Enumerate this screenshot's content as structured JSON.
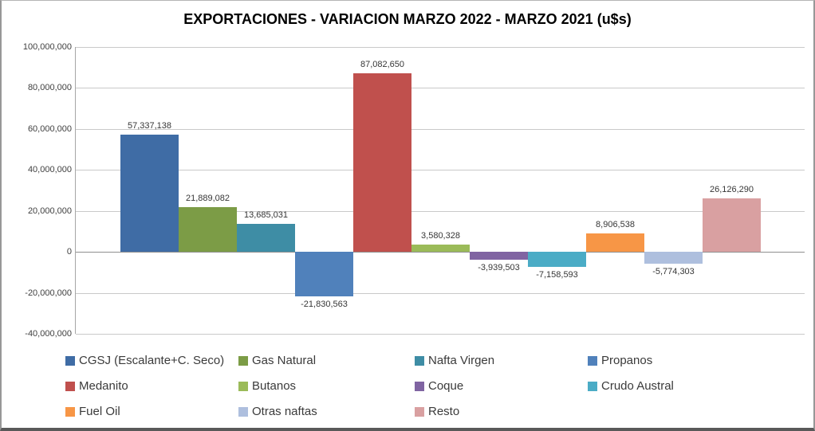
{
  "title": "EXPORTACIONES - VARIACION MARZO 2022 - MARZO 2021 (u$s)",
  "chart_data": {
    "type": "bar",
    "title": "EXPORTACIONES - VARIACION MARZO 2022 - MARZO 2021 (u$s)",
    "xlabel": "",
    "ylabel": "",
    "ylim": [
      -40000000,
      100000000
    ],
    "ytick_step": 20000000,
    "grid": "horizontal",
    "legend_position": "bottom",
    "yticks": [
      {
        "value": 100000000,
        "label": "100,000,000"
      },
      {
        "value": 80000000,
        "label": "80,000,000"
      },
      {
        "value": 60000000,
        "label": "60,000,000"
      },
      {
        "value": 40000000,
        "label": "40,000,000"
      },
      {
        "value": 20000000,
        "label": "20,000,000"
      },
      {
        "value": 0,
        "label": "0"
      },
      {
        "value": -20000000,
        "label": "-20,000,000"
      },
      {
        "value": -40000000,
        "label": "-40,000,000"
      }
    ],
    "points": [
      {
        "name": "CGSJ (Escalante+C. Seco)",
        "value": 57337138,
        "label": "57,337,138",
        "color": "#3f6ca5"
      },
      {
        "name": "Gas Natural",
        "value": 21889082,
        "label": "21,889,082",
        "color": "#7c9c46"
      },
      {
        "name": "Nafta Virgen",
        "value": 13685031,
        "label": "13,685,031",
        "color": "#3e8da5"
      },
      {
        "name": "Propanos",
        "value": -21830563,
        "label": "-21,830,563",
        "color": "#5081bb"
      },
      {
        "name": "Medanito",
        "value": 87082650,
        "label": "87,082,650",
        "color": "#c0504d"
      },
      {
        "name": "Butanos",
        "value": 3580328,
        "label": "3,580,328",
        "color": "#9bbb59"
      },
      {
        "name": "Coque",
        "value": -3939503,
        "label": "-3,939,503",
        "color": "#8064a2"
      },
      {
        "name": "Crudo Austral",
        "value": -7158593,
        "label": "-7,158,593",
        "color": "#4bacc6"
      },
      {
        "name": "Fuel Oil",
        "value": 8906538,
        "label": "8,906,538",
        "color": "#f79646"
      },
      {
        "name": "Otras naftas",
        "value": -5774303,
        "label": "-5,774,303",
        "color": "#aebfde"
      },
      {
        "name": "Resto",
        "value": 26126290,
        "label": "26,126,290",
        "color": "#d9a0a1"
      }
    ]
  },
  "legend": {
    "columns": 4,
    "items": [
      "CGSJ (Escalante+C. Seco)",
      "Gas Natural",
      "Nafta Virgen",
      "Propanos",
      "Medanito",
      "Butanos",
      "Coque",
      "Crudo Austral",
      "Fuel Oil",
      "Otras naftas",
      "Resto"
    ]
  }
}
